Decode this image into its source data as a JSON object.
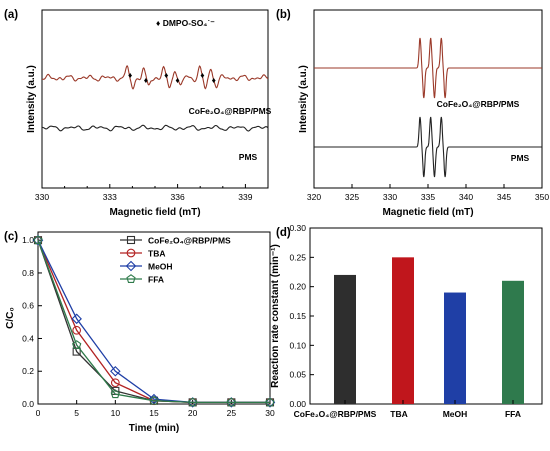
{
  "colors": {
    "epr_signal": "#9b3a2a",
    "epr_baseline": "#222222",
    "s1": "#333333",
    "s2": "#b22222",
    "s3": "#1f3fa6",
    "s4": "#2e7a4a",
    "bar1": "#2e2e2e",
    "bar2": "#c0161c",
    "bar3": "#1f3fa6",
    "bar4": "#2f7a4d"
  },
  "chart_data": [
    {
      "panel": "(a)",
      "type": "line",
      "xlabel": "Magnetic field (mT)",
      "ylabel": "Intensity (a.u.)",
      "xlim": [
        330,
        340
      ],
      "xticks": [
        330,
        333,
        336,
        339
      ],
      "legend_marker": "♦",
      "legend_text": "DMPO-SO₄˙⁻",
      "series": [
        {
          "name": "CoFe₂O₄@RBP/PMS",
          "role": "upper"
        },
        {
          "name": "PMS",
          "role": "lower"
        }
      ],
      "marked_peaks_mT": [
        333.9,
        334.6,
        335.5,
        336.0,
        337.1,
        337.6
      ]
    },
    {
      "panel": "(b)",
      "type": "line",
      "xlabel": "Magnetic field (mT)",
      "ylabel": "Intensity (a.u.)",
      "xlim": [
        320,
        350
      ],
      "xticks": [
        320,
        325,
        330,
        335,
        340,
        345,
        350
      ],
      "series": [
        {
          "name": "CoFe₂O₄@RBP/PMS",
          "lines_mT": [
            334.2,
            335.6,
            337.0
          ]
        },
        {
          "name": "PMS",
          "lines_mT": [
            334.2,
            335.6,
            337.0
          ]
        }
      ]
    },
    {
      "panel": "(c)",
      "type": "line",
      "xlabel": "Time (min)",
      "ylabel": "C/C₀",
      "xlim": [
        0,
        30
      ],
      "ylim": [
        0,
        1.05
      ],
      "xticks": [
        0,
        5,
        10,
        15,
        20,
        25,
        30
      ],
      "yticks": [
        0.0,
        0.2,
        0.4,
        0.6,
        0.8,
        1.0
      ],
      "x": [
        0,
        5,
        10,
        15,
        20,
        25,
        30
      ],
      "series": [
        {
          "name": "CoFe₂O₄@RBP/PMS",
          "values": [
            1.0,
            0.32,
            0.08,
            0.02,
            0.01,
            0.01,
            0.01
          ]
        },
        {
          "name": "TBA",
          "values": [
            1.0,
            0.45,
            0.13,
            0.02,
            0.01,
            0.01,
            0.01
          ]
        },
        {
          "name": "MeOH",
          "values": [
            1.0,
            0.52,
            0.2,
            0.03,
            0.01,
            0.01,
            0.01
          ]
        },
        {
          "name": "FFA",
          "values": [
            1.0,
            0.36,
            0.06,
            0.02,
            0.01,
            0.01,
            0.01
          ]
        }
      ]
    },
    {
      "panel": "(d)",
      "type": "bar",
      "ylabel": "Reaction rate constant (min⁻¹)",
      "ylim": [
        0,
        0.3
      ],
      "yticks": [
        0.0,
        0.05,
        0.1,
        0.15,
        0.2,
        0.25,
        0.3
      ],
      "categories": [
        "CoFe₂O₄@RBP/PMS",
        "TBA",
        "MeOH",
        "FFA"
      ],
      "values": [
        0.22,
        0.25,
        0.19,
        0.21
      ]
    }
  ]
}
